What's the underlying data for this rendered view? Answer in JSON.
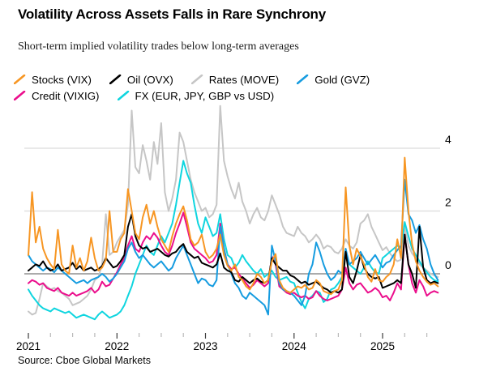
{
  "header": {
    "title": "Volatility Across Assets Falls in Rare Synchrony",
    "subtitle": "Short-term implied volatility trades below long-term averages"
  },
  "source_text": "Source: Cboe Global Markets",
  "chart_data": {
    "type": "line",
    "title": "Volatility Across Assets Falls in Rare Synchrony",
    "subtitle": "Short-term implied volatility trades below long-term averages",
    "x_unit": "half-month steps starting Jan 2021",
    "x_start_year": 2021,
    "points_per_year": 24,
    "x_range_years": [
      2021.0,
      2025.625
    ],
    "x_tick_labels": [
      "2021",
      "2022",
      "2023",
      "2024",
      "2025"
    ],
    "minor_ticks": "quarterly",
    "y_ticks": [
      4,
      2,
      0
    ],
    "ylim": [
      -1.8,
      5.4
    ],
    "y_axis_side": "right",
    "grid": "horizontal",
    "zero_line_color": "#8f8f8f",
    "gridline_color": "#dcdcdc",
    "legend_position": "top",
    "legend_rows": [
      4,
      2
    ],
    "draw_order": [
      "rates_move",
      "fx",
      "credit_vixig",
      "gold_gvz",
      "oil_ovx",
      "stocks_vix"
    ],
    "series": [
      {
        "id": "stocks_vix",
        "name": "Stocks (VIX)",
        "color": "#f79623",
        "values": [
          0.6,
          2.6,
          1.0,
          1.5,
          0.8,
          0.5,
          0.3,
          0.15,
          1.4,
          0.3,
          0.1,
          0.0,
          0.9,
          0.2,
          0.5,
          0.1,
          0.4,
          1.15,
          0.5,
          0.1,
          0.2,
          0.45,
          2.0,
          0.7,
          0.7,
          1.1,
          1.3,
          2.7,
          2.0,
          1.3,
          1.1,
          1.8,
          2.2,
          1.6,
          2.0,
          1.5,
          1.1,
          0.9,
          0.7,
          1.2,
          1.6,
          1.9,
          2.15,
          1.7,
          1.1,
          0.9,
          1.0,
          1.25,
          0.7,
          0.5,
          0.6,
          0.8,
          1.25,
          0.6,
          0.25,
          0.1,
          0.3,
          -0.1,
          -0.2,
          -0.4,
          -0.5,
          -0.3,
          0.0,
          -0.1,
          -0.3,
          -0.2,
          0.4,
          0.63,
          -0.2,
          -0.45,
          -0.55,
          -0.6,
          -0.5,
          -0.4,
          -0.45,
          -0.35,
          -0.5,
          -0.45,
          -0.2,
          -0.3,
          -0.55,
          -0.6,
          -0.65,
          -0.55,
          -0.5,
          -0.2,
          2.75,
          0.9,
          0.3,
          0.8,
          0.55,
          0.3,
          -0.1,
          -0.25,
          0.15,
          -0.2,
          -0.25,
          -0.1,
          0.0,
          0.3,
          1.1,
          0.5,
          3.7,
          2.0,
          0.95,
          0.4,
          0.1,
          -0.1,
          -0.25,
          -0.35,
          -0.3,
          -0.4
        ]
      },
      {
        "id": "oil_ovx",
        "name": "Oil (OVX)",
        "color": "#000000",
        "values": [
          0.1,
          0.2,
          0.3,
          0.25,
          0.4,
          0.2,
          0.1,
          0.15,
          0.3,
          0.1,
          0.15,
          0.2,
          0.35,
          0.15,
          0.25,
          0.1,
          0.15,
          0.2,
          0.1,
          0.15,
          0.25,
          0.5,
          0.35,
          0.2,
          0.25,
          0.4,
          0.6,
          1.5,
          1.9,
          1.2,
          0.9,
          0.8,
          0.85,
          0.7,
          0.75,
          0.8,
          0.7,
          0.6,
          0.55,
          0.65,
          0.7,
          0.85,
          0.95,
          0.7,
          0.6,
          0.5,
          0.55,
          0.35,
          0.3,
          0.25,
          0.2,
          0.3,
          0.65,
          0.2,
          0.1,
          0.05,
          -0.2,
          -0.25,
          -0.1,
          -0.2,
          -0.3,
          -0.2,
          -0.15,
          -0.25,
          -0.3,
          -0.2,
          0.5,
          0.3,
          0.2,
          0.1,
          0.1,
          -0.05,
          -0.1,
          -0.2,
          -0.3,
          -0.25,
          -0.35,
          -0.3,
          -0.25,
          -0.35,
          -0.45,
          -0.5,
          -0.6,
          -0.55,
          -0.6,
          -0.5,
          0.7,
          -0.1,
          -0.3,
          0.1,
          0.6,
          0.2,
          0.0,
          -0.1,
          -0.15,
          -0.1,
          -0.45,
          -0.4,
          -0.35,
          -0.3,
          -0.2,
          -0.3,
          1.25,
          0.3,
          0.0,
          -0.45,
          1.5,
          0.2,
          -0.2,
          -0.3,
          -0.25,
          -0.3
        ]
      },
      {
        "id": "rates_move",
        "name": "Rates (MOVE)",
        "color": "#c6c6c6",
        "values": [
          -1.2,
          -1.3,
          -1.25,
          -0.8,
          -0.3,
          -0.4,
          -0.5,
          -0.45,
          -0.55,
          -0.6,
          -0.7,
          -0.8,
          -1.0,
          -0.95,
          -0.9,
          -0.8,
          -0.7,
          -0.5,
          -0.2,
          -0.1,
          0.3,
          1.9,
          0.6,
          0.7,
          1.0,
          1.2,
          1.4,
          2.2,
          5.2,
          3.4,
          3.2,
          4.1,
          3.6,
          3.0,
          4.2,
          3.5,
          4.8,
          2.6,
          2.0,
          2.4,
          3.0,
          4.5,
          4.2,
          3.6,
          3.0,
          2.6,
          2.3,
          2.0,
          2.1,
          1.8,
          1.9,
          2.2,
          5.35,
          3.6,
          3.1,
          2.7,
          2.4,
          2.9,
          2.3,
          2.0,
          1.6,
          1.9,
          2.1,
          1.8,
          1.7,
          2.0,
          2.5,
          2.2,
          1.9,
          1.5,
          1.3,
          1.25,
          1.2,
          1.5,
          1.3,
          1.2,
          1.0,
          1.1,
          1.25,
          1.1,
          0.8,
          0.9,
          0.85,
          0.7,
          0.65,
          0.8,
          1.1,
          0.9,
          0.8,
          1.0,
          1.6,
          1.7,
          1.9,
          1.5,
          1.25,
          1.0,
          0.75,
          0.85,
          0.65,
          0.5,
          0.4,
          0.45,
          1.5,
          0.9,
          0.65,
          0.5,
          0.3,
          0.2,
          0.1,
          0.0,
          -0.05,
          -0.1
        ]
      },
      {
        "id": "gold_gvz",
        "name": "Gold (GVZ)",
        "color": "#169ce0",
        "values": [
          0.6,
          0.4,
          0.3,
          0.2,
          0.1,
          0.2,
          0.15,
          0.05,
          0.2,
          0.1,
          0.0,
          -0.1,
          -0.2,
          -0.3,
          -0.25,
          -0.2,
          -0.3,
          -0.2,
          -0.15,
          -0.1,
          0.0,
          -0.1,
          -0.25,
          -0.15,
          0.0,
          0.2,
          0.4,
          0.8,
          1.0,
          0.7,
          0.5,
          0.6,
          0.45,
          0.3,
          0.2,
          0.3,
          0.4,
          0.25,
          0.1,
          0.2,
          0.5,
          0.7,
          0.9,
          0.6,
          0.3,
          0.0,
          -0.3,
          -0.15,
          -0.2,
          -0.35,
          -0.4,
          -0.2,
          1.5,
          0.8,
          0.3,
          0.0,
          -0.3,
          -0.45,
          -0.7,
          -0.8,
          -0.6,
          -0.7,
          -0.8,
          -0.9,
          -1.0,
          -1.3,
          0.9,
          0.4,
          -0.3,
          -0.5,
          -0.55,
          -0.6,
          -0.7,
          -0.85,
          -1.0,
          -0.7,
          0.0,
          0.3,
          1.0,
          0.7,
          0.3,
          0.0,
          -0.2,
          -0.1,
          0.1,
          0.0,
          0.8,
          0.3,
          0.4,
          0.5,
          0.7,
          0.5,
          0.3,
          0.45,
          0.6,
          0.4,
          0.2,
          0.35,
          0.4,
          0.6,
          0.75,
          0.9,
          3.0,
          1.9,
          1.7,
          1.3,
          1.55,
          1.1,
          0.8,
          0.3,
          0.0,
          -0.2
        ]
      },
      {
        "id": "credit_vixig",
        "name": "Credit (VIXIG)",
        "color": "#eb0e8c",
        "values": [
          -0.3,
          -0.2,
          -0.25,
          -0.35,
          -0.3,
          -0.45,
          -0.5,
          -0.55,
          -0.45,
          -0.6,
          -0.65,
          -0.7,
          -0.6,
          -0.7,
          -0.65,
          -0.6,
          -0.55,
          -0.45,
          -0.6,
          -0.5,
          -0.25,
          -0.4,
          -0.35,
          -0.15,
          0.05,
          0.3,
          0.5,
          0.9,
          1.2,
          0.8,
          0.7,
          1.0,
          1.2,
          1.1,
          1.3,
          1.15,
          0.9,
          0.7,
          0.6,
          0.9,
          1.3,
          1.6,
          1.95,
          1.5,
          1.0,
          0.8,
          0.7,
          0.6,
          0.5,
          0.35,
          0.4,
          0.6,
          1.6,
          0.8,
          0.3,
          0.15,
          0.2,
          0.0,
          -0.15,
          -0.3,
          -0.45,
          -0.35,
          -0.2,
          -0.3,
          -0.4,
          -0.3,
          0.55,
          0.3,
          -0.4,
          -0.5,
          -0.6,
          -0.65,
          -0.6,
          -0.7,
          -0.75,
          -0.7,
          -0.8,
          -0.75,
          -0.55,
          -0.7,
          -0.8,
          -0.85,
          -0.8,
          -0.75,
          -0.7,
          -0.5,
          0.2,
          -0.3,
          -0.5,
          -0.35,
          -0.3,
          -0.45,
          -0.6,
          -0.55,
          -0.45,
          -0.55,
          -0.75,
          -0.7,
          -0.85,
          -0.6,
          -0.3,
          -0.5,
          1.25,
          0.3,
          -0.3,
          -0.6,
          -0.2,
          -0.4,
          -0.7,
          -0.6,
          -0.55,
          -0.6
        ]
      },
      {
        "id": "fx",
        "name": "FX (EUR, JPY, GBP vs USD)",
        "color": "#0fd5df",
        "values": [
          -0.5,
          -0.7,
          -0.85,
          -1.0,
          -1.1,
          -1.15,
          -1.2,
          -1.1,
          -1.15,
          -1.2,
          -1.25,
          -1.2,
          -1.3,
          -1.4,
          -1.35,
          -1.3,
          -1.35,
          -1.4,
          -1.45,
          -1.3,
          -1.2,
          -1.3,
          -1.4,
          -1.35,
          -1.3,
          -1.2,
          -1.0,
          -0.7,
          -0.4,
          0.0,
          0.3,
          0.6,
          0.9,
          0.7,
          0.6,
          0.9,
          1.2,
          1.0,
          1.3,
          1.6,
          2.2,
          2.9,
          3.6,
          3.2,
          2.9,
          2.2,
          1.6,
          1.3,
          1.8,
          1.5,
          1.2,
          1.3,
          1.9,
          1.1,
          0.6,
          0.5,
          0.2,
          0.35,
          0.6,
          0.4,
          0.25,
          0.1,
          0.0,
          0.15,
          -0.1,
          0.0,
          0.1,
          -0.1,
          -0.2,
          -0.15,
          -0.1,
          -0.25,
          -0.3,
          -0.6,
          -0.9,
          -1.1,
          -0.8,
          -0.7,
          -0.55,
          -0.6,
          -0.9,
          -0.8,
          -0.5,
          -0.45,
          -0.3,
          -0.1,
          0.65,
          0.3,
          0.2,
          0.1,
          0.0,
          0.2,
          0.4,
          0.2,
          0.05,
          0.0,
          0.5,
          0.6,
          0.7,
          0.8,
          0.9,
          0.8,
          1.65,
          1.2,
          0.8,
          0.6,
          0.4,
          0.2,
          0.05,
          -0.1,
          -0.2,
          -0.25
        ]
      }
    ]
  }
}
